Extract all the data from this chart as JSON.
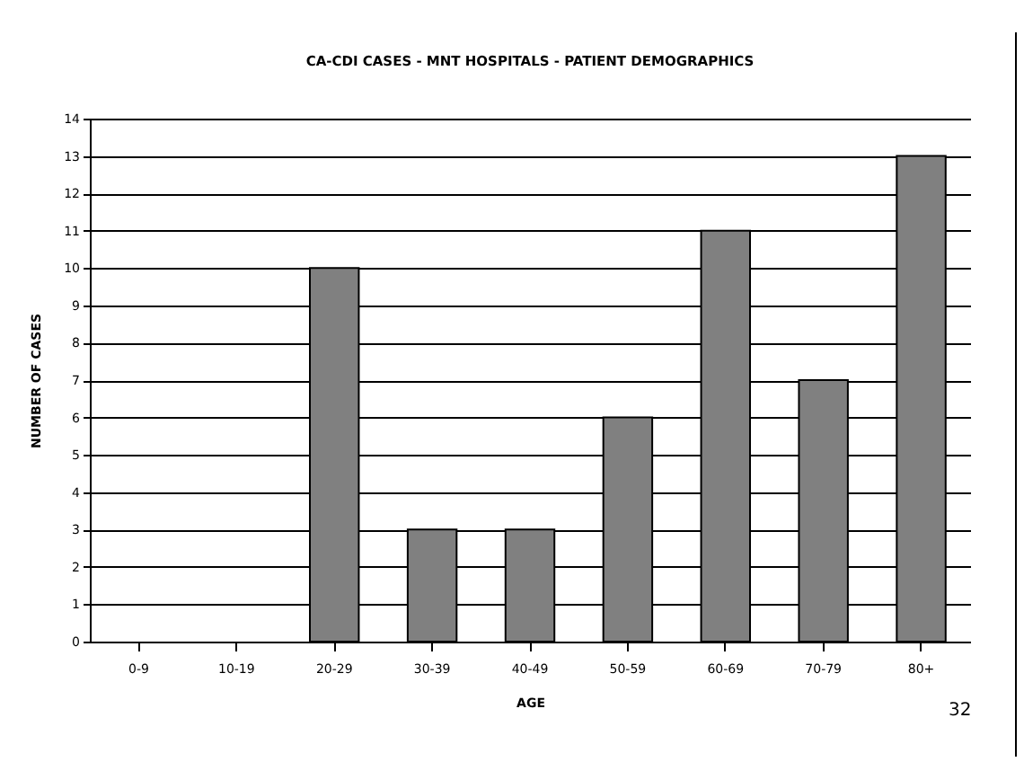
{
  "chart_data": {
    "type": "bar",
    "title": "CA-CDI CASES - MNT HOSPITALS - PATIENT DEMOGRAPHICS",
    "xlabel": "AGE",
    "ylabel": "NUMBER OF CASES",
    "categories": [
      "0-9",
      "10-19",
      "20-29",
      "30-39",
      "40-49",
      "50-59",
      "60-69",
      "70-79",
      "80+"
    ],
    "values": [
      0,
      0,
      10,
      3,
      3,
      6,
      11,
      7,
      13
    ],
    "color": "#808080",
    "ylim": [
      0,
      14
    ],
    "yticks": [
      0,
      1,
      2,
      3,
      4,
      5,
      6,
      7,
      8,
      9,
      10,
      11,
      12,
      13,
      14
    ],
    "grid": "y",
    "annotations": [
      "32"
    ]
  }
}
